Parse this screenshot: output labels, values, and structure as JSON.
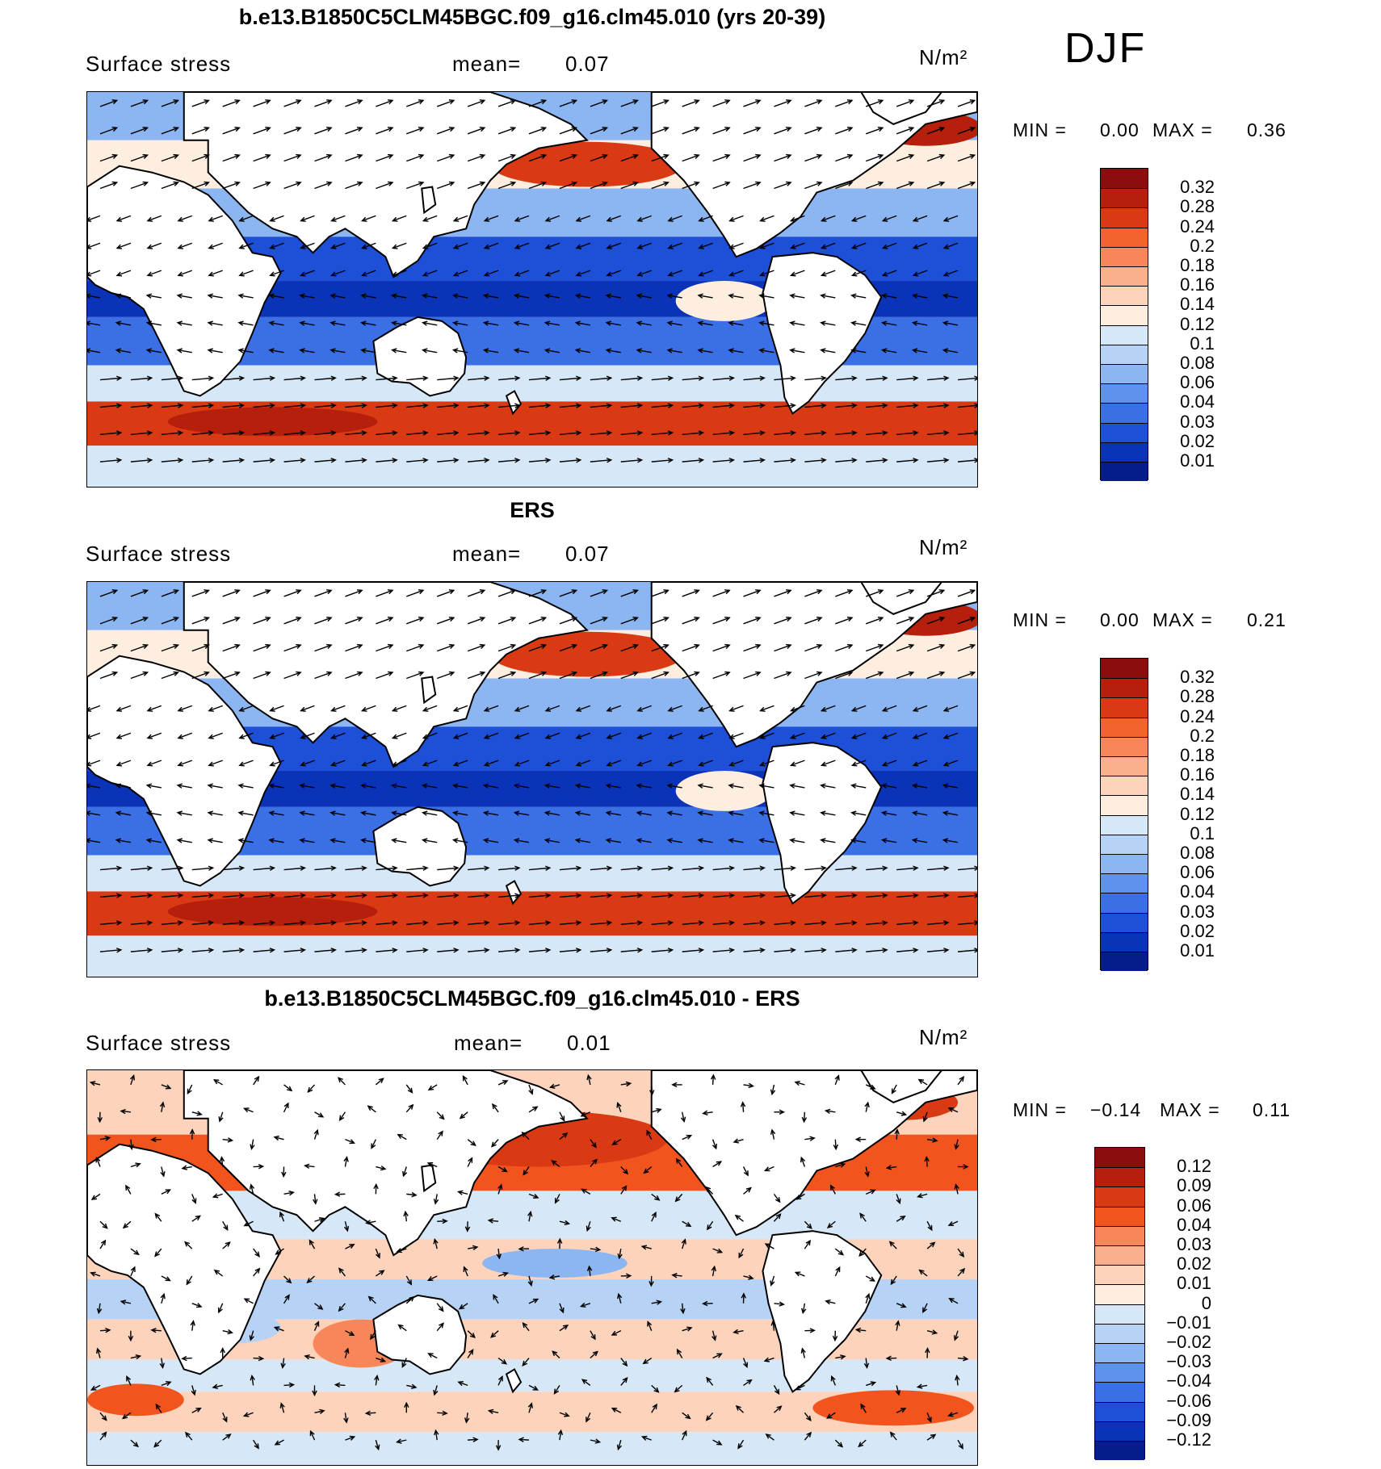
{
  "season": "DJF",
  "panels": [
    {
      "title": "b.e13.B1850C5CLM45BGC.f09_g16.clm45.010 (yrs 20-39)",
      "variable": "Surface stress",
      "mean_label": "mean=",
      "mean_value": "0.07",
      "units": "N/m²",
      "min_label": "MIN =",
      "min_value": "0.00",
      "max_label": "MAX =",
      "max_value": "0.36",
      "colorbar": {
        "labels": [
          "0.32",
          "0.28",
          "0.24",
          "0.2",
          "0.18",
          "0.16",
          "0.14",
          "0.12",
          "0.1",
          "0.08",
          "0.06",
          "0.04",
          "0.03",
          "0.02",
          "0.01"
        ],
        "colors": [
          "#8c0d0d",
          "#b51f0c",
          "#d93a14",
          "#f2632e",
          "#f7875a",
          "#fab08c",
          "#fdd3bb",
          "#fdeee0",
          "#d6e7f7",
          "#b6d2f5",
          "#8cb6f2",
          "#5f92ec",
          "#3a6fe6",
          "#1d4fd7",
          "#0b33b8",
          "#061c8a"
        ]
      }
    },
    {
      "title": "ERS",
      "variable": "Surface stress",
      "mean_label": "mean=",
      "mean_value": "0.07",
      "units": "N/m²",
      "min_label": "MIN =",
      "min_value": "0.00",
      "max_label": "MAX =",
      "max_value": "0.21",
      "colorbar": {
        "labels": [
          "0.32",
          "0.28",
          "0.24",
          "0.2",
          "0.18",
          "0.16",
          "0.14",
          "0.12",
          "0.1",
          "0.08",
          "0.06",
          "0.04",
          "0.03",
          "0.02",
          "0.01"
        ],
        "colors": [
          "#8c0d0d",
          "#b51f0c",
          "#d93a14",
          "#f2632e",
          "#f7875a",
          "#fab08c",
          "#fdd3bb",
          "#fdeee0",
          "#d6e7f7",
          "#b6d2f5",
          "#8cb6f2",
          "#5f92ec",
          "#3a6fe6",
          "#1d4fd7",
          "#0b33b8",
          "#061c8a"
        ]
      }
    },
    {
      "title": "b.e13.B1850C5CLM45BGC.f09_g16.clm45.010 - ERS",
      "variable": "Surface stress",
      "mean_label": "mean=",
      "mean_value": "0.01",
      "units": "N/m²",
      "min_label": "MIN =",
      "min_value": "−0.14",
      "max_label": "MAX =",
      "max_value": "0.11",
      "colorbar": {
        "labels": [
          "0.12",
          "0.09",
          "0.06",
          "0.04",
          "0.03",
          "0.02",
          "0.01",
          "0",
          "−0.01",
          "−0.02",
          "−0.03",
          "−0.04",
          "−0.06",
          "−0.09",
          "−0.12"
        ],
        "colors": [
          "#8c0d0d",
          "#b51f0c",
          "#d93a14",
          "#f2541e",
          "#f7875a",
          "#fab08c",
          "#fdd3bb",
          "#fdeee0",
          "#d6e7f7",
          "#b6d2f5",
          "#8cb6f2",
          "#5f92ec",
          "#3a6fe6",
          "#1d4fd7",
          "#0b33b8",
          "#061c8a"
        ]
      }
    }
  ]
}
